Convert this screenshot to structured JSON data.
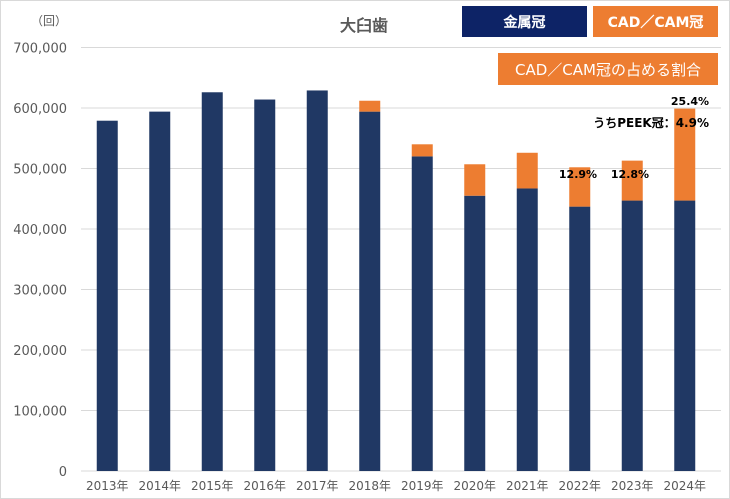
{
  "chart_data": {
    "type": "bar",
    "stacked": true,
    "title": "大臼歯",
    "ylabel": "（回）",
    "ylim": [
      0,
      700000
    ],
    "yticks": [
      "0",
      "100,000",
      "200,000",
      "300,000",
      "400,000",
      "500,000",
      "600,000",
      "700,000"
    ],
    "categories": [
      "2013年",
      "2014年",
      "2015年",
      "2016年",
      "2017年",
      "2018年",
      "2019年",
      "2020年",
      "2021年",
      "2022年",
      "2023年",
      "2024年"
    ],
    "series": [
      {
        "name": "金属冠",
        "color": "#203864",
        "values": [
          579000,
          594000,
          626000,
          614000,
          629000,
          594000,
          520000,
          455000,
          467000,
          437000,
          447000,
          447000
        ]
      },
      {
        "name": "CAD／CAM冠",
        "color": "#ed7d31",
        "values": [
          0,
          0,
          0,
          0,
          0,
          18000,
          20000,
          52000,
          59000,
          65000,
          66000,
          152000
        ]
      }
    ],
    "legend": [
      {
        "label": "金属冠",
        "color": "#0d2366"
      },
      {
        "label": "CAD／CAM冠",
        "color": "#ed7d31"
      }
    ],
    "annotation_box": "CAD／CAM冠の占める割合",
    "data_labels": [
      {
        "category": "2022年",
        "text": "12.9%"
      },
      {
        "category": "2023年",
        "text": "12.8%"
      },
      {
        "category": "2024年",
        "text": "25.4%"
      }
    ],
    "peek_label": "うちPEEK冠：4.9%",
    "grid": true
  }
}
